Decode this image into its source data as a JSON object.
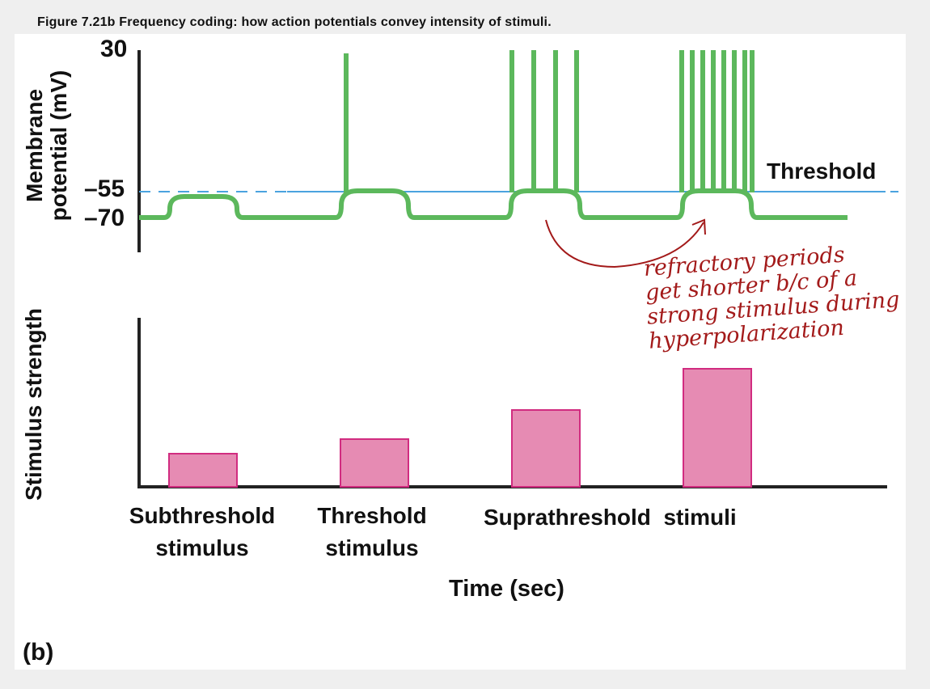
{
  "figure": {
    "caption": "Figure 7.21b  Frequency coding: how action potentials convey intensity of stimuli.",
    "panel_letter": "(b)"
  },
  "top_graph": {
    "ylabel_line1": "Membrane",
    "ylabel_line2": "potential (mV)",
    "ticks": [
      "30",
      "–55",
      "–70"
    ],
    "threshold_label": "Threshold",
    "colors": {
      "trace": "#5cb85c",
      "threshold": "#4aa3df"
    }
  },
  "bottom_graph": {
    "ylabel": "Stimulus strength",
    "colors": {
      "bar_fill": "#e68bb3",
      "bar_stroke": "#d12c80"
    },
    "relative_strengths": [
      0.2,
      0.29,
      0.46,
      0.71
    ]
  },
  "categories": {
    "subthreshold": [
      "Subthreshold",
      "stimulus"
    ],
    "threshold": [
      "Threshold",
      "stimulus"
    ],
    "suprathreshold": "Suprathreshold  stimuli"
  },
  "xlabel": "Time (sec)",
  "annotation": {
    "lines": [
      "refractory periods",
      "get shorter b/c of a",
      "strong stimulus during",
      "hyperpolarization"
    ],
    "color": "#a31a1a"
  }
}
